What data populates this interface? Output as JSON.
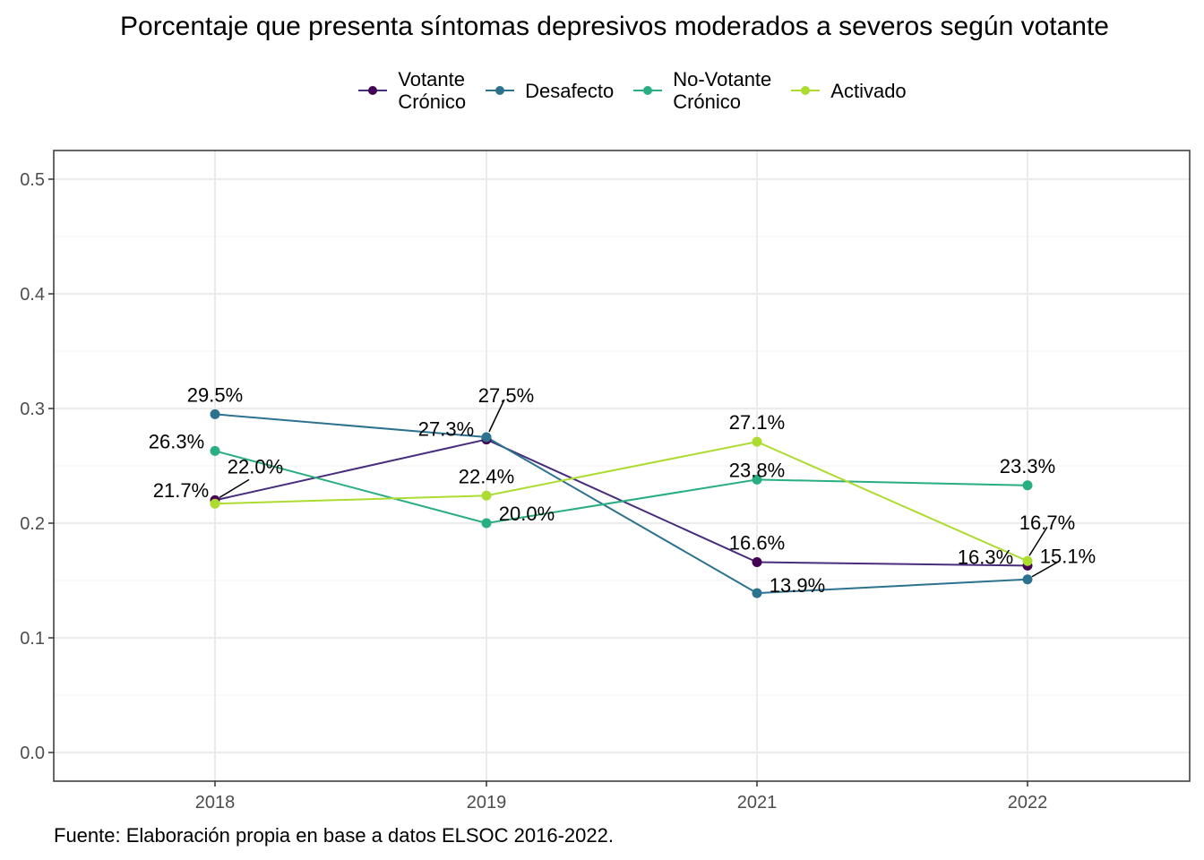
{
  "chart_data": {
    "type": "line",
    "title": "Porcentaje que presenta síntomas depresivos moderados a severos según votante",
    "xlabel": "",
    "ylabel": "",
    "categories": [
      "2018",
      "2019",
      "2021",
      "2022"
    ],
    "ylim": [
      0,
      0.5
    ],
    "yticks": [
      "0.0",
      "0.1",
      "0.2",
      "0.3",
      "0.4",
      "0.5"
    ],
    "grid": true,
    "legend_position": "top",
    "series": [
      {
        "name": "Votante\nCrónico",
        "color": "#440154",
        "lineColor": "#472D7B",
        "values": [
          0.22,
          0.273,
          0.166,
          0.163
        ],
        "labels": [
          "22.0%",
          "27.3%",
          "16.6%",
          "16.3%"
        ]
      },
      {
        "name": "Desafecto",
        "color": "#2C728E",
        "values": [
          0.295,
          0.275,
          0.139,
          0.151
        ],
        "labels": [
          "29.5%",
          "27.5%",
          "13.9%",
          "15.1%"
        ]
      },
      {
        "name": "No-Votante\nCrónico",
        "color": "#28AE80",
        "values": [
          0.263,
          0.2,
          0.238,
          0.233
        ],
        "labels": [
          "26.3%",
          "20.0%",
          "23.8%",
          "23.3%"
        ]
      },
      {
        "name": "Activado",
        "color": "#ADDC30",
        "values": [
          0.217,
          0.224,
          0.271,
          0.167
        ],
        "labels": [
          "21.7%",
          "22.4%",
          "27.1%",
          "16.7%"
        ]
      }
    ]
  },
  "caption": "Fuente: Elaboración propia en base a datos ELSOC 2016-2022."
}
